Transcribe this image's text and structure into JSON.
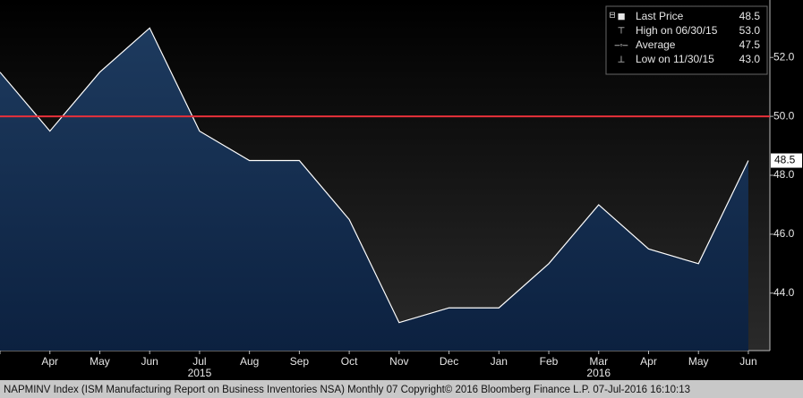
{
  "chart_data": {
    "type": "area",
    "categories": [
      null,
      "Apr",
      "May",
      "Jun",
      "Jul",
      "Aug",
      "Sep",
      "Oct",
      "Nov",
      "Dec",
      "Jan",
      "Feb",
      "Mar",
      "Apr",
      "May",
      "Jun"
    ],
    "years": [
      {
        "at": "Jul",
        "label": "2015"
      },
      {
        "at": "Mar",
        "label": "2016"
      }
    ],
    "series": [
      {
        "name": "Last Price",
        "color": "#ffffff",
        "values": [
          51.5,
          49.5,
          51.5,
          53.0,
          49.5,
          48.5,
          48.5,
          46.5,
          43.0,
          43.5,
          43.5,
          45.0,
          47.0,
          45.5,
          45.0,
          48.5
        ]
      }
    ],
    "last_value_label": "48.5",
    "reference_line": {
      "value": 50,
      "color": "#e8303a"
    },
    "ylim": [
      42.05,
      53.95
    ],
    "yticks": [
      {
        "value": 44,
        "label": "44.0"
      },
      {
        "value": 46,
        "label": "46.0"
      },
      {
        "value": 48,
        "label": "48.0"
      },
      {
        "value": 50,
        "label": "50.0"
      },
      {
        "value": 52,
        "label": "52.0"
      }
    ],
    "legend": [
      {
        "name": "Last Price",
        "value": 48.5,
        "label": "48.5"
      },
      {
        "name": "High on 06/30/15",
        "value": 53,
        "label": "53.0"
      },
      {
        "name": "Average",
        "value": 47.5,
        "label": "47.5"
      },
      {
        "name": "Low on 11/30/15",
        "value": 43,
        "label": "43.0"
      }
    ],
    "footer": "NAPMINV Index (ISM Manufacturing Report on Business Inventories NSA)  Monthly 07  Copyright© 2016 Bloomberg Finance L.P.  07-Jul-2016 16:10:13"
  }
}
